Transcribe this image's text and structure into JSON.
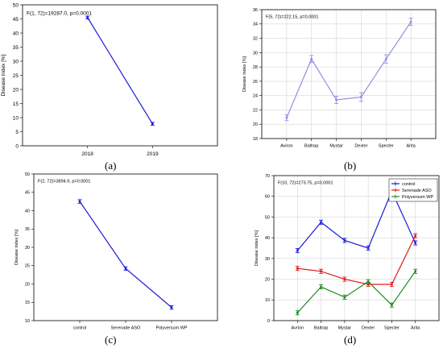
{
  "panels": [
    {
      "label": "(a)"
    },
    {
      "label": "(b)"
    },
    {
      "label": "(c)"
    },
    {
      "label": "(d)"
    }
  ],
  "chart_data": [
    {
      "type": "line",
      "annotation": "F(1, 72)=19287.0, p=0.0001",
      "xlabel": "",
      "ylabel": "Disease index [%]",
      "categories": [
        "2018",
        "2019"
      ],
      "ylim": [
        0,
        50
      ],
      "yticks": [
        0,
        5,
        10,
        15,
        20,
        25,
        30,
        35,
        40,
        45,
        50
      ],
      "grid": false,
      "series": [
        {
          "color": "#1a1adc",
          "values": [
            45.5,
            7.8
          ],
          "errors": [
            0.5,
            0.5
          ]
        }
      ]
    },
    {
      "type": "line",
      "annotation": "F(5, 72)=222.15, p=0.0001",
      "xlabel": "",
      "ylabel": "Disease index [%]",
      "categories": [
        "Aviron",
        "Baltrap",
        "Mystar",
        "Dexter",
        "Specter",
        "Arita"
      ],
      "ylim": [
        18,
        36
      ],
      "yticks": [
        18,
        20,
        22,
        24,
        26,
        28,
        30,
        32,
        34,
        36
      ],
      "grid": true,
      "series": [
        {
          "color": "#8f8fe3",
          "values": [
            20.9,
            29.1,
            23.4,
            23.8,
            29.1,
            34.3
          ],
          "errors": [
            0.4,
            0.5,
            0.5,
            0.6,
            0.6,
            0.5
          ]
        }
      ]
    },
    {
      "type": "line",
      "annotation": "F(2, 72)=3894.9, p=0.0001",
      "xlabel": "",
      "ylabel": "Disease index [%]",
      "categories": [
        "control",
        "Serenade ASO",
        "Polyversum WP"
      ],
      "ylim": [
        10,
        50
      ],
      "yticks": [
        10,
        15,
        20,
        25,
        30,
        35,
        40,
        45,
        50
      ],
      "grid": false,
      "series": [
        {
          "color": "#1a1adc",
          "values": [
            42.5,
            24.2,
            13.6
          ],
          "errors": [
            0.5,
            0.5,
            0.5
          ]
        }
      ]
    },
    {
      "type": "line",
      "annotation": "F(10, 72)=273.75, p=0.0001",
      "xlabel": "",
      "ylabel": "Disease index [%]",
      "categories": [
        "Avrion",
        "Baltrap",
        "Mystar",
        "Dexter",
        "Specter",
        "Arita"
      ],
      "ylim": [
        0,
        70
      ],
      "yticks": [
        0,
        10,
        20,
        30,
        40,
        50,
        60,
        70
      ],
      "grid": true,
      "legend": "top-right",
      "series": [
        {
          "name": "control",
          "color": "#1a1adc",
          "values": [
            33.8,
            47.5,
            38.7,
            35.0,
            62.5,
            37.5
          ],
          "errors": [
            1.0,
            1.0,
            1.0,
            1.0,
            1.0,
            1.0
          ]
        },
        {
          "name": "Serenade ASO",
          "color": "#e01818",
          "values": [
            25.2,
            23.8,
            20.0,
            17.5,
            17.5,
            41.0
          ],
          "errors": [
            1.0,
            1.0,
            1.0,
            1.0,
            1.0,
            1.0
          ]
        },
        {
          "name": "Polyversum WP",
          "color": "#1e8c1e",
          "values": [
            3.8,
            16.3,
            11.3,
            18.8,
            7.5,
            23.8
          ],
          "errors": [
            1.0,
            1.0,
            1.0,
            1.0,
            1.0,
            1.0
          ]
        }
      ]
    }
  ]
}
